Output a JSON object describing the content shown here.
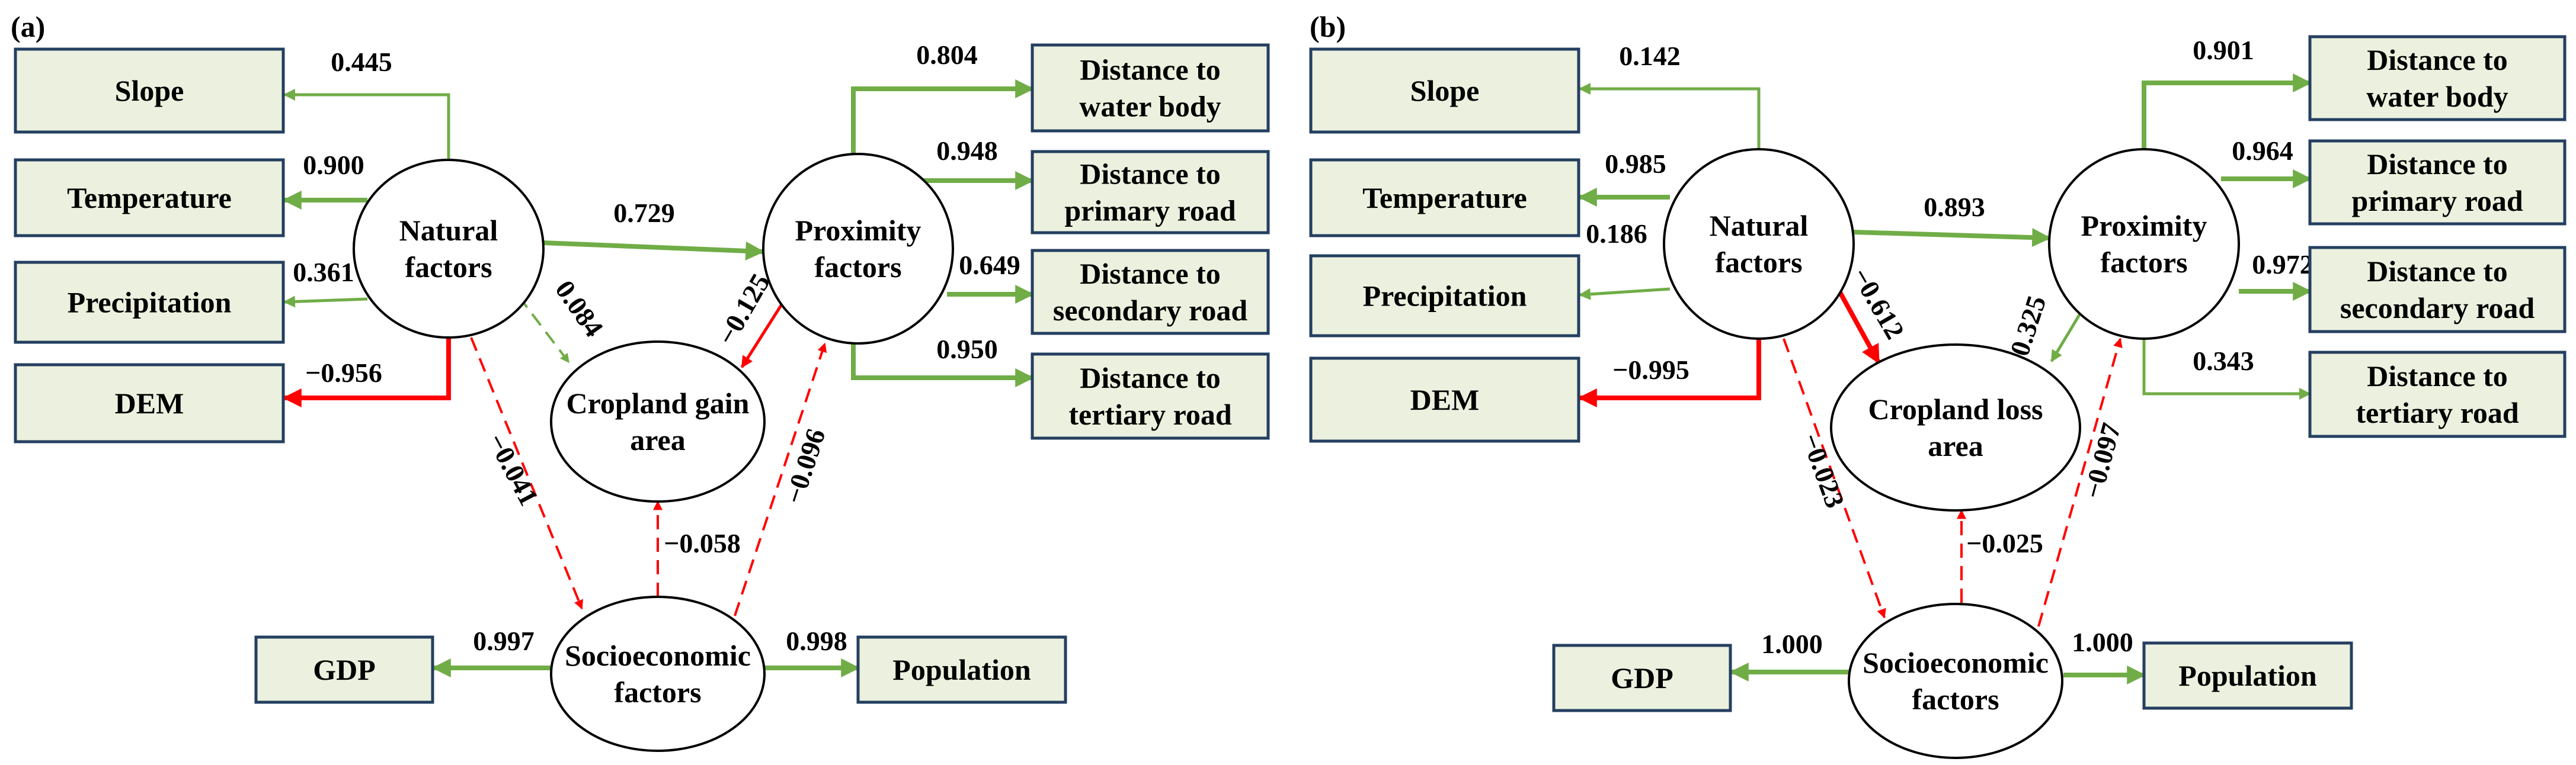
{
  "colors": {
    "positive": "#70ad47",
    "negative": "#ff0000",
    "box_fill": "#ebf1de",
    "box_border": "#243f60"
  },
  "panels": [
    {
      "label": "(a)",
      "latents": {
        "natural": "Natural factors",
        "proximity": "Proximity factors",
        "socio": "Socioeconomic factors",
        "cropland": "Cropland gain area"
      },
      "observed": {
        "slope": "Slope",
        "temperature": "Temperature",
        "precipitation": "Precipitation",
        "dem": "DEM",
        "water": "Distance to water body",
        "primary": "Distance to primary road",
        "secondary": "Distance to secondary road",
        "tertiary": "Distance to tertiary road",
        "gdp": "GDP",
        "population": "Population"
      },
      "paths": [
        {
          "from": "natural",
          "to": "slope",
          "coef": "0.445",
          "sign": "positive",
          "style": "solid"
        },
        {
          "from": "natural",
          "to": "temperature",
          "coef": "0.900",
          "sign": "positive",
          "style": "solid"
        },
        {
          "from": "natural",
          "to": "precipitation",
          "coef": "0.361",
          "sign": "positive",
          "style": "solid"
        },
        {
          "from": "natural",
          "to": "dem",
          "coef": "−0.956",
          "sign": "negative",
          "style": "solid"
        },
        {
          "from": "natural",
          "to": "proximity",
          "coef": "0.729",
          "sign": "positive",
          "style": "solid"
        },
        {
          "from": "natural",
          "to": "cropland",
          "coef": "0.084",
          "sign": "positive",
          "style": "dashed"
        },
        {
          "from": "natural",
          "to": "socio",
          "coef": "−0.041",
          "sign": "negative",
          "style": "dashed"
        },
        {
          "from": "proximity",
          "to": "water",
          "coef": "0.804",
          "sign": "positive",
          "style": "solid"
        },
        {
          "from": "proximity",
          "to": "primary",
          "coef": "0.948",
          "sign": "positive",
          "style": "solid"
        },
        {
          "from": "proximity",
          "to": "secondary",
          "coef": "0.649",
          "sign": "positive",
          "style": "solid"
        },
        {
          "from": "proximity",
          "to": "tertiary",
          "coef": "0.950",
          "sign": "positive",
          "style": "solid"
        },
        {
          "from": "proximity",
          "to": "cropland",
          "coef": "−0.125",
          "sign": "negative",
          "style": "solid"
        },
        {
          "from": "socio",
          "to": "proximity",
          "coef": "−0.096",
          "sign": "negative",
          "style": "dashed"
        },
        {
          "from": "socio",
          "to": "cropland",
          "coef": "−0.058",
          "sign": "negative",
          "style": "dashed"
        },
        {
          "from": "socio",
          "to": "gdp",
          "coef": "0.997",
          "sign": "positive",
          "style": "solid"
        },
        {
          "from": "socio",
          "to": "population",
          "coef": "0.998",
          "sign": "positive",
          "style": "solid"
        }
      ]
    },
    {
      "label": "(b)",
      "latents": {
        "natural": "Natural factors",
        "proximity": "Proximity factors",
        "socio": "Socioeconomic factors",
        "cropland": "Cropland loss area"
      },
      "observed": {
        "slope": "Slope",
        "temperature": "Temperature",
        "precipitation": "Precipitation",
        "dem": "DEM",
        "water": "Distance to water body",
        "primary": "Distance to primary road",
        "secondary": "Distance to secondary road",
        "tertiary": "Distance to tertiary road",
        "gdp": "GDP",
        "population": "Population"
      },
      "paths": [
        {
          "from": "natural",
          "to": "slope",
          "coef": "0.142",
          "sign": "positive",
          "style": "solid"
        },
        {
          "from": "natural",
          "to": "temperature",
          "coef": "0.985",
          "sign": "positive",
          "style": "solid"
        },
        {
          "from": "natural",
          "to": "precipitation",
          "coef": "0.186",
          "sign": "positive",
          "style": "solid"
        },
        {
          "from": "natural",
          "to": "dem",
          "coef": "−0.995",
          "sign": "negative",
          "style": "solid"
        },
        {
          "from": "natural",
          "to": "proximity",
          "coef": "0.893",
          "sign": "positive",
          "style": "solid"
        },
        {
          "from": "natural",
          "to": "cropland",
          "coef": "−0.612",
          "sign": "negative",
          "style": "solid"
        },
        {
          "from": "natural",
          "to": "socio",
          "coef": "−0.023",
          "sign": "negative",
          "style": "dashed"
        },
        {
          "from": "proximity",
          "to": "water",
          "coef": "0.901",
          "sign": "positive",
          "style": "solid"
        },
        {
          "from": "proximity",
          "to": "primary",
          "coef": "0.964",
          "sign": "positive",
          "style": "solid"
        },
        {
          "from": "proximity",
          "to": "secondary",
          "coef": "0.972",
          "sign": "positive",
          "style": "solid"
        },
        {
          "from": "proximity",
          "to": "tertiary",
          "coef": "0.343",
          "sign": "positive",
          "style": "solid"
        },
        {
          "from": "proximity",
          "to": "cropland",
          "coef": "0.325",
          "sign": "positive",
          "style": "solid"
        },
        {
          "from": "socio",
          "to": "proximity",
          "coef": "−0.097",
          "sign": "negative",
          "style": "dashed"
        },
        {
          "from": "socio",
          "to": "cropland",
          "coef": "−0.025",
          "sign": "negative",
          "style": "dashed"
        },
        {
          "from": "socio",
          "to": "gdp",
          "coef": "1.000",
          "sign": "positive",
          "style": "solid"
        },
        {
          "from": "socio",
          "to": "population",
          "coef": "1.000",
          "sign": "positive",
          "style": "solid"
        }
      ]
    }
  ]
}
